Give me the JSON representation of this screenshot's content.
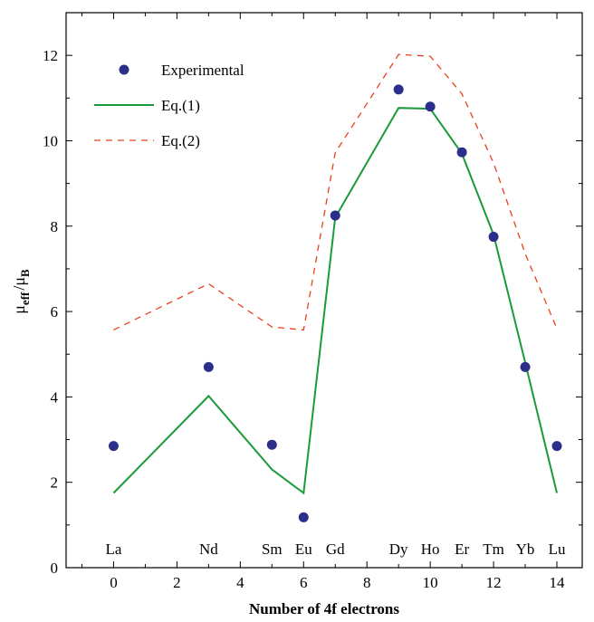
{
  "chart_data": {
    "type": "line",
    "title": "",
    "xlabel": "Number of 4f electrons",
    "ylabel": {
      "base": "μ",
      "sub1": "eff",
      "sep": "/",
      "base2": "μ",
      "sub2": "B"
    },
    "xlim": [
      -1.5,
      14.8
    ],
    "ylim": [
      0,
      13.0
    ],
    "xticks": [
      0,
      2,
      4,
      6,
      8,
      10,
      12,
      14
    ],
    "xtick_labels": [
      "0",
      "2",
      "4",
      "6",
      "8",
      "10",
      "12",
      "14"
    ],
    "yticks": [
      0,
      2,
      4,
      6,
      8,
      10,
      12
    ],
    "ytick_labels": [
      "0",
      "2",
      "4",
      "6",
      "8",
      "10",
      "12"
    ],
    "grid": false,
    "legend_position": "top-left",
    "element_labels": [
      {
        "x": 0,
        "label": "La"
      },
      {
        "x": 3,
        "label": "Nd"
      },
      {
        "x": 5,
        "label": "Sm"
      },
      {
        "x": 6,
        "label": "Eu"
      },
      {
        "x": 7,
        "label": "Gd"
      },
      {
        "x": 9,
        "label": "Dy"
      },
      {
        "x": 10,
        "label": "Ho"
      },
      {
        "x": 11,
        "label": "Er"
      },
      {
        "x": 12,
        "label": "Tm"
      },
      {
        "x": 13,
        "label": "Yb"
      },
      {
        "x": 14,
        "label": "Lu"
      }
    ],
    "series": [
      {
        "name": "Experimental",
        "style": "markers",
        "color": "#2b2f8a",
        "x": [
          0,
          3,
          5,
          6,
          7,
          9,
          10,
          11,
          12,
          13,
          14
        ],
        "y": [
          2.85,
          4.7,
          2.88,
          1.18,
          8.25,
          11.2,
          10.8,
          9.73,
          7.75,
          4.7,
          2.85
        ]
      },
      {
        "name": "Eq.(1)",
        "style": "solid",
        "color": "#1a9a3a",
        "x": [
          0,
          3,
          5,
          6,
          7,
          9,
          10,
          11,
          12,
          13,
          14
        ],
        "y": [
          1.75,
          4.02,
          2.3,
          1.75,
          8.2,
          10.77,
          10.75,
          9.7,
          7.8,
          4.8,
          1.75
        ]
      },
      {
        "name": "Eq.(2)",
        "style": "dashed",
        "color": "#e8401e",
        "x": [
          0,
          3,
          5,
          6,
          7,
          9,
          10,
          11,
          12,
          13,
          14
        ],
        "y": [
          5.57,
          6.65,
          5.64,
          5.57,
          9.72,
          12.02,
          11.98,
          11.1,
          9.48,
          7.35,
          5.6
        ]
      }
    ]
  }
}
